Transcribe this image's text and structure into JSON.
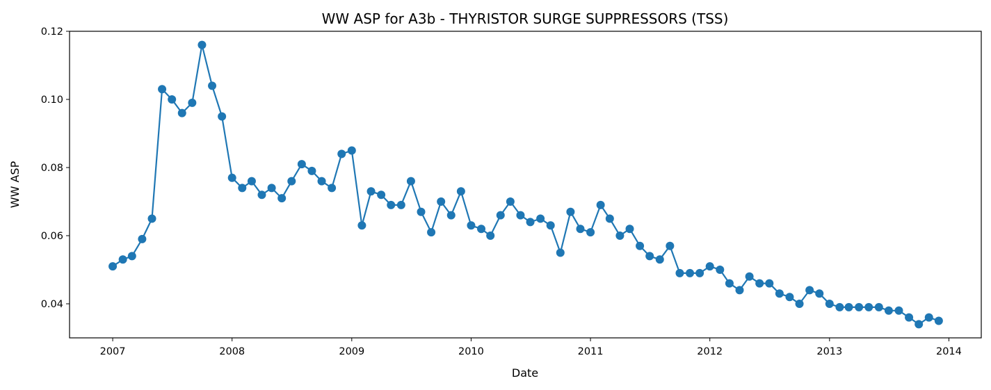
{
  "chart_data": {
    "type": "line",
    "title": "WW ASP for A3b - THYRISTOR SURGE SUPPRESSORS (TSS)",
    "xlabel": "Date",
    "ylabel": "WW ASP",
    "xlim": [
      "2006-08-22",
      "2014-04-10"
    ],
    "ylim": [
      0.03,
      0.12
    ],
    "xticks": [
      "2007",
      "2008",
      "2009",
      "2010",
      "2011",
      "2012",
      "2013",
      "2014"
    ],
    "yticks": [
      "0.04",
      "0.06",
      "0.08",
      "0.10",
      "0.12"
    ],
    "grid": false,
    "legend": "none",
    "series": [
      {
        "color": "#1f77b4",
        "marker": "circle",
        "x": [
          "2007-01",
          "2007-02",
          "2007-03",
          "2007-04",
          "2007-05",
          "2007-06",
          "2007-07",
          "2007-08",
          "2007-09",
          "2007-10",
          "2007-11",
          "2007-12",
          "2008-01",
          "2008-02",
          "2008-03",
          "2008-04",
          "2008-05",
          "2008-06",
          "2008-07",
          "2008-08",
          "2008-09",
          "2008-10",
          "2008-11",
          "2008-12",
          "2009-01",
          "2009-02",
          "2009-03",
          "2009-04",
          "2009-05",
          "2009-06",
          "2009-07",
          "2009-08",
          "2009-09",
          "2009-10",
          "2009-11",
          "2009-12",
          "2010-01",
          "2010-02",
          "2010-03",
          "2010-04",
          "2010-05",
          "2010-06",
          "2010-07",
          "2010-08",
          "2010-09",
          "2010-10",
          "2010-11",
          "2010-12",
          "2011-01",
          "2011-02",
          "2011-03",
          "2011-04",
          "2011-05",
          "2011-06",
          "2011-07",
          "2011-08",
          "2011-09",
          "2011-10",
          "2011-11",
          "2011-12",
          "2012-01",
          "2012-02",
          "2012-03",
          "2012-04",
          "2012-05",
          "2012-06",
          "2012-07",
          "2012-08",
          "2012-09",
          "2012-10",
          "2012-11",
          "2012-12",
          "2013-01",
          "2013-02",
          "2013-03",
          "2013-04",
          "2013-05",
          "2013-06",
          "2013-07",
          "2013-08",
          "2013-09",
          "2013-10",
          "2013-11",
          "2013-12"
        ],
        "values": [
          0.051,
          0.053,
          0.054,
          0.059,
          0.065,
          0.103,
          0.1,
          0.096,
          0.099,
          0.116,
          0.104,
          0.095,
          0.077,
          0.074,
          0.076,
          0.072,
          0.074,
          0.071,
          0.076,
          0.081,
          0.079,
          0.076,
          0.074,
          0.084,
          0.085,
          0.063,
          0.073,
          0.072,
          0.069,
          0.069,
          0.076,
          0.067,
          0.061,
          0.07,
          0.066,
          0.073,
          0.063,
          0.062,
          0.06,
          0.066,
          0.07,
          0.066,
          0.064,
          0.065,
          0.063,
          0.055,
          0.067,
          0.062,
          0.061,
          0.069,
          0.065,
          0.06,
          0.062,
          0.057,
          0.054,
          0.053,
          0.057,
          0.049,
          0.049,
          0.049,
          0.051,
          0.05,
          0.046,
          0.044,
          0.048,
          0.046,
          0.046,
          0.043,
          0.042,
          0.04,
          0.044,
          0.043,
          0.04,
          0.039,
          0.039,
          0.039,
          0.039,
          0.039,
          0.038,
          0.038,
          0.036,
          0.034,
          0.036,
          0.035
        ]
      }
    ]
  }
}
